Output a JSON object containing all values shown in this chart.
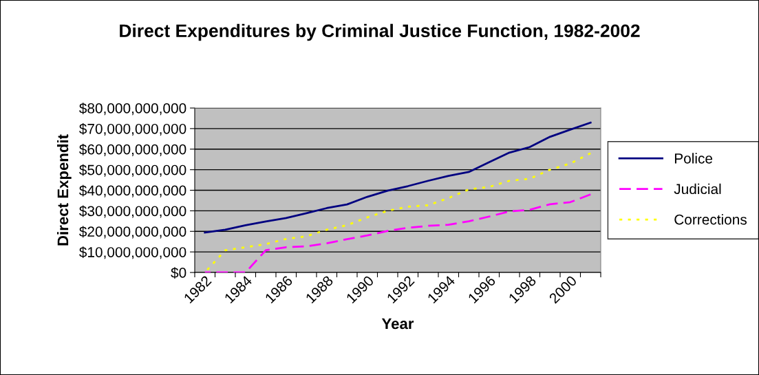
{
  "chart_data": {
    "type": "line",
    "title": "Direct Expenditures by Criminal Justice Function, 1982-2002",
    "xlabel": "Year",
    "ylabel": "Direct Expendit",
    "categories": [
      "1982",
      null,
      "1984",
      null,
      "1986",
      null,
      "1988",
      null,
      "1990",
      null,
      "1992",
      null,
      "1994",
      null,
      "1996",
      null,
      "1998",
      null,
      "2000",
      null
    ],
    "series": [
      {
        "name": "Police",
        "color": "#000080",
        "line_style": "solid",
        "values": [
          19400000000,
          20800000000,
          23000000000,
          24800000000,
          26500000000,
          28800000000,
          31300000000,
          33100000000,
          36800000000,
          39800000000,
          42000000000,
          44600000000,
          47000000000,
          48900000000,
          53600000000,
          58300000000,
          61000000000,
          66000000000,
          69500000000,
          72900000000
        ]
      },
      {
        "name": "Judicial",
        "color": "#ff00ff",
        "line_style": "dashed",
        "values": [
          0,
          0,
          0,
          10800000000,
          12300000000,
          12700000000,
          14200000000,
          16200000000,
          18000000000,
          20200000000,
          21700000000,
          22700000000,
          23200000000,
          24900000000,
          27200000000,
          29700000000,
          30500000000,
          33200000000,
          34200000000,
          38000000000
        ]
      },
      {
        "name": "Corrections",
        "color": "#ffff00",
        "line_style": "dotted",
        "values": [
          0,
          10800000000,
          12300000000,
          13800000000,
          16300000000,
          17600000000,
          20800000000,
          23000000000,
          26800000000,
          30000000000,
          32000000000,
          32700000000,
          36200000000,
          40400000000,
          41600000000,
          44600000000,
          45600000000,
          50000000000,
          53000000000,
          58000000000
        ]
      }
    ],
    "ylim": [
      0,
      80000000000
    ],
    "yticks": [
      {
        "value": 0,
        "label": "$0"
      },
      {
        "value": 10000000000,
        "label": "$10,000,000,000"
      },
      {
        "value": 20000000000,
        "label": "$20,000,000,000"
      },
      {
        "value": 30000000000,
        "label": "$30,000,000,000"
      },
      {
        "value": 40000000000,
        "label": "$40,000,000,000"
      },
      {
        "value": 50000000000,
        "label": "$50,000,000,000"
      },
      {
        "value": 60000000000,
        "label": "$60,000,000,000"
      },
      {
        "value": 70000000000,
        "label": "$70,000,000,000"
      },
      {
        "value": 80000000000,
        "label": "$80,000,000,000"
      }
    ],
    "grid": "y",
    "legend": "right",
    "marker": "none"
  }
}
